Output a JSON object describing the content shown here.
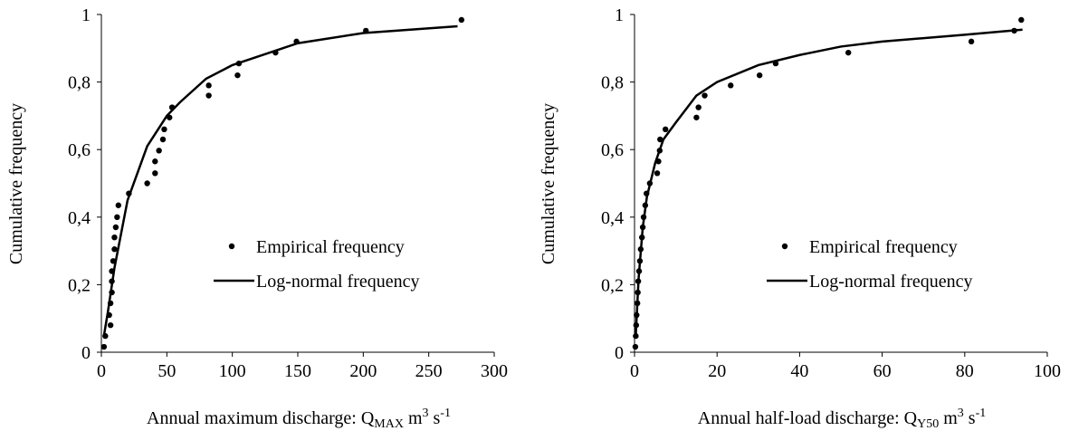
{
  "chart_data": [
    {
      "type": "scatter",
      "y_label": "Cumulative frequency",
      "x_label": [
        "Annual maximum discharge: Q",
        "MAX",
        " m",
        "3",
        " s",
        "-1"
      ],
      "xlim": [
        0,
        300
      ],
      "xticks": [
        0,
        50,
        100,
        150,
        200,
        250,
        300
      ],
      "ylim": [
        0,
        1
      ],
      "yticks": [
        0,
        {
          "value": 0.2,
          "label": "0,2"
        },
        {
          "value": 0.4,
          "label": "0,4"
        },
        {
          "value": 0.6,
          "label": "0,6"
        },
        {
          "value": 0.8,
          "label": "0,8"
        },
        1
      ],
      "legend": "lower right",
      "series": [
        {
          "name": "Empirical frequency",
          "style": "markers",
          "color": "#000000",
          "x": [
            2,
            3,
            7,
            6,
            7,
            8,
            8,
            8,
            9,
            10,
            10,
            11,
            12,
            13,
            21,
            35,
            41,
            41,
            44,
            47,
            48,
            52,
            54,
            82,
            82,
            104,
            105,
            133,
            149,
            202,
            275
          ],
          "values": [
            0.016,
            0.048,
            0.08,
            0.11,
            0.145,
            0.177,
            0.21,
            0.24,
            0.27,
            0.305,
            0.34,
            0.37,
            0.4,
            0.435,
            0.47,
            0.5,
            0.53,
            0.565,
            0.597,
            0.63,
            0.66,
            0.695,
            0.725,
            0.76,
            0.79,
            0.82,
            0.855,
            0.887,
            0.92,
            0.952,
            0.984
          ]
        },
        {
          "name": "Log-normal frequency",
          "style": "line",
          "color": "#000000",
          "x": [
            2,
            5,
            10,
            20,
            35,
            50,
            60,
            80,
            100,
            150,
            200,
            272
          ],
          "values": [
            0.05,
            0.12,
            0.25,
            0.45,
            0.61,
            0.7,
            0.74,
            0.81,
            0.85,
            0.915,
            0.945,
            0.965
          ]
        }
      ]
    },
    {
      "type": "scatter",
      "y_label": "Cumulative frequency",
      "x_label": [
        "Annual half-load discharge: Q",
        "Y50",
        " m",
        "3",
        " s",
        "-1"
      ],
      "xlim": [
        0,
        100
      ],
      "xticks": [
        0,
        20,
        40,
        60,
        80,
        100
      ],
      "ylim": [
        0,
        1
      ],
      "yticks": [
        0,
        {
          "value": 0.2,
          "label": "0,2"
        },
        {
          "value": 0.4,
          "label": "0,4"
        },
        {
          "value": 0.6,
          "label": "0,6"
        },
        {
          "value": 0.8,
          "label": "0,8"
        },
        1
      ],
      "legend": "lower right",
      "series": [
        {
          "name": "Empirical frequency",
          "style": "markers",
          "color": "#000000",
          "x": [
            0.2,
            0.3,
            0.4,
            0.5,
            0.7,
            0.8,
            0.9,
            1.1,
            1.3,
            1.5,
            1.8,
            2,
            2.2,
            2.6,
            2.9,
            3.7,
            5.5,
            5.8,
            6.1,
            6.2,
            7.5,
            15,
            15.5,
            17,
            23.3,
            30.3,
            34.2,
            51.8,
            81.6,
            92,
            93.7
          ],
          "values": [
            0.016,
            0.048,
            0.08,
            0.11,
            0.145,
            0.177,
            0.21,
            0.24,
            0.27,
            0.305,
            0.34,
            0.37,
            0.4,
            0.435,
            0.47,
            0.5,
            0.53,
            0.565,
            0.597,
            0.63,
            0.66,
            0.695,
            0.725,
            0.76,
            0.79,
            0.82,
            0.855,
            0.887,
            0.92,
            0.952,
            0.984
          ]
        },
        {
          "name": "Log-normal frequency",
          "style": "line",
          "color": "#000000",
          "x": [
            0.3,
            0.5,
            1,
            2,
            3,
            5,
            7,
            10,
            15,
            20,
            30,
            40,
            50,
            60,
            80,
            94
          ],
          "values": [
            0.05,
            0.1,
            0.22,
            0.37,
            0.46,
            0.56,
            0.63,
            0.68,
            0.76,
            0.8,
            0.85,
            0.88,
            0.905,
            0.92,
            0.94,
            0.955
          ]
        }
      ]
    }
  ]
}
